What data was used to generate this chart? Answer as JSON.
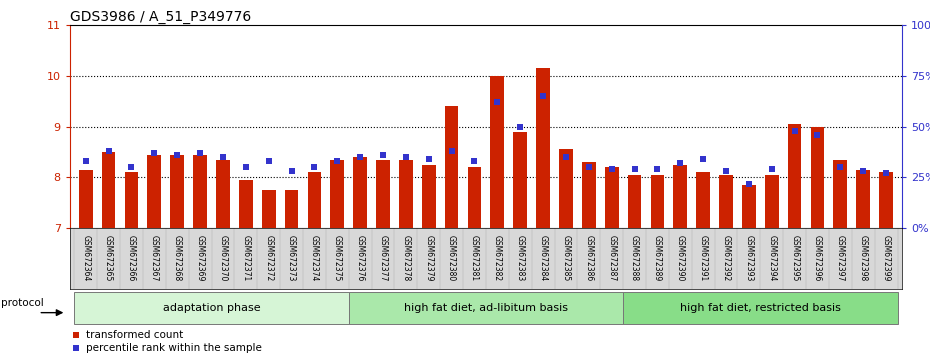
{
  "title": "GDS3986 / A_51_P349776",
  "categories": [
    "GSM672364",
    "GSM672365",
    "GSM672366",
    "GSM672367",
    "GSM672368",
    "GSM672369",
    "GSM672370",
    "GSM672371",
    "GSM672372",
    "GSM672373",
    "GSM672374",
    "GSM672375",
    "GSM672376",
    "GSM672377",
    "GSM672378",
    "GSM672379",
    "GSM672380",
    "GSM672381",
    "GSM672382",
    "GSM672383",
    "GSM672384",
    "GSM672385",
    "GSM672386",
    "GSM672387",
    "GSM672388",
    "GSM672389",
    "GSM672390",
    "GSM672391",
    "GSM672392",
    "GSM672393",
    "GSM672394",
    "GSM672395",
    "GSM672396",
    "GSM672397",
    "GSM672398",
    "GSM672399"
  ],
  "bar_values": [
    8.15,
    8.5,
    8.1,
    8.45,
    8.45,
    8.45,
    8.35,
    7.95,
    7.75,
    7.75,
    8.1,
    8.35,
    8.4,
    8.35,
    8.35,
    8.25,
    9.4,
    8.2,
    10.0,
    8.9,
    10.15,
    8.55,
    8.3,
    8.2,
    8.05,
    8.05,
    8.25,
    8.1,
    8.05,
    7.85,
    8.05,
    9.05,
    9.0,
    8.35,
    8.15,
    8.1
  ],
  "percentile_values": [
    33,
    38,
    30,
    37,
    36,
    37,
    35,
    30,
    33,
    28,
    30,
    33,
    35,
    36,
    35,
    34,
    38,
    33,
    62,
    50,
    65,
    35,
    30,
    29,
    29,
    29,
    32,
    34,
    28,
    22,
    29,
    48,
    46,
    30,
    28,
    27
  ],
  "groups": [
    {
      "label": "adaptation phase",
      "start": 0,
      "end": 12,
      "color": "#d6f5d6"
    },
    {
      "label": "high fat diet, ad-libitum basis",
      "start": 12,
      "end": 24,
      "color": "#aae8aa"
    },
    {
      "label": "high fat diet, restricted basis",
      "start": 24,
      "end": 36,
      "color": "#88dd88"
    }
  ],
  "ylim_left": [
    7,
    11
  ],
  "ylim_right": [
    0,
    100
  ],
  "yticks_left": [
    7,
    8,
    9,
    10,
    11
  ],
  "yticks_right": [
    0,
    25,
    50,
    75,
    100
  ],
  "grid_yticks": [
    8,
    9,
    10
  ],
  "bar_color": "#cc2200",
  "dot_color": "#3333cc",
  "background_color": "#ffffff",
  "grid_color": "#000000",
  "title_fontsize": 10,
  "tick_fontsize": 8,
  "legend_label_red": "transformed count",
  "legend_label_blue": "percentile rank within the sample",
  "protocol_label": "protocol"
}
